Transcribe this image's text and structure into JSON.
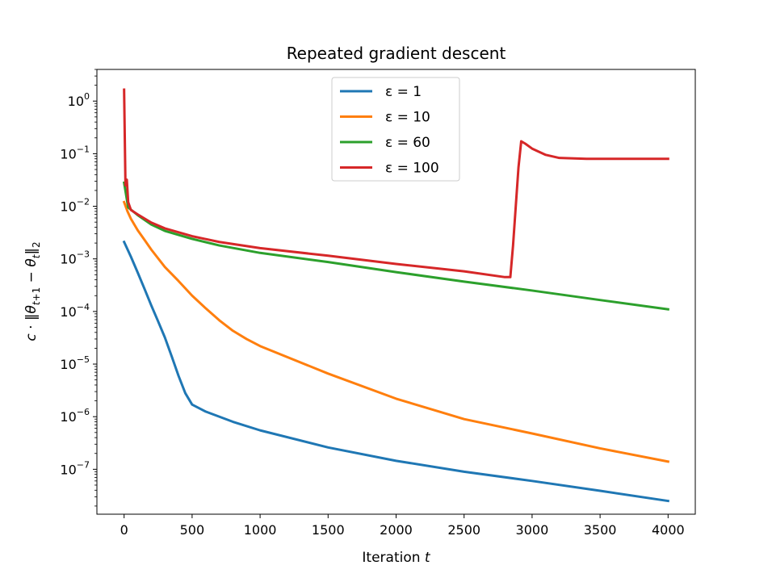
{
  "chart_data": {
    "type": "line",
    "title": "Repeated gradient descent",
    "xlabel": "Iteration t",
    "ylabel": "c · ‖θ_{t+1} − θ_t‖₂",
    "y_scale": "log",
    "xlim": [
      -200,
      4200
    ],
    "ylim": [
      1.4e-08,
      4
    ],
    "x_ticks": [
      0,
      500,
      1000,
      1500,
      2000,
      2500,
      3000,
      3500,
      4000
    ],
    "y_ticks": [
      {
        "value": 1,
        "base": "10",
        "exp": "0"
      },
      {
        "value": 0.1,
        "base": "10",
        "exp": "−1"
      },
      {
        "value": 0.01,
        "base": "10",
        "exp": "−2"
      },
      {
        "value": 0.001,
        "base": "10",
        "exp": "−3"
      },
      {
        "value": 0.0001,
        "base": "10",
        "exp": "−4"
      },
      {
        "value": 1e-05,
        "base": "10",
        "exp": "−5"
      },
      {
        "value": 1e-06,
        "base": "10",
        "exp": "−6"
      },
      {
        "value": 1e-07,
        "base": "10",
        "exp": "−7"
      }
    ],
    "grid": false,
    "legend_position": "top-center",
    "series": [
      {
        "name": "ε = 1",
        "color": "#1f77b4",
        "points": [
          [
            0,
            0.0021
          ],
          [
            50,
            0.0011
          ],
          [
            100,
            0.00055
          ],
          [
            150,
            0.00027
          ],
          [
            200,
            0.00013
          ],
          [
            250,
            6.5e-05
          ],
          [
            300,
            3.2e-05
          ],
          [
            350,
            1.4e-05
          ],
          [
            400,
            6e-06
          ],
          [
            450,
            2.8e-06
          ],
          [
            500,
            1.7e-06
          ],
          [
            600,
            1.25e-06
          ],
          [
            800,
            8e-07
          ],
          [
            1000,
            5.5e-07
          ],
          [
            1500,
            2.6e-07
          ],
          [
            2000,
            1.45e-07
          ],
          [
            2500,
            9e-08
          ],
          [
            3000,
            6e-08
          ],
          [
            3500,
            3.9e-08
          ],
          [
            4000,
            2.5e-08
          ]
        ]
      },
      {
        "name": "ε = 10",
        "color": "#ff7f0e",
        "points": [
          [
            0,
            0.012
          ],
          [
            25,
            0.008
          ],
          [
            50,
            0.0058
          ],
          [
            100,
            0.0035
          ],
          [
            150,
            0.0023
          ],
          [
            200,
            0.0015
          ],
          [
            300,
            0.0007
          ],
          [
            400,
            0.00038
          ],
          [
            500,
            0.0002
          ],
          [
            600,
            0.000115
          ],
          [
            700,
            6.8e-05
          ],
          [
            800,
            4.3e-05
          ],
          [
            900,
            3e-05
          ],
          [
            1000,
            2.2e-05
          ],
          [
            1500,
            6.6e-06
          ],
          [
            2000,
            2.2e-06
          ],
          [
            2500,
            9e-07
          ],
          [
            3000,
            4.8e-07
          ],
          [
            3500,
            2.5e-07
          ],
          [
            4000,
            1.4e-07
          ]
        ]
      },
      {
        "name": "ε = 60",
        "color": "#2ca02c",
        "points": [
          [
            0,
            0.028
          ],
          [
            30,
            0.0095
          ],
          [
            100,
            0.0068
          ],
          [
            200,
            0.0045
          ],
          [
            300,
            0.0034
          ],
          [
            500,
            0.0024
          ],
          [
            700,
            0.0018
          ],
          [
            1000,
            0.0013
          ],
          [
            1500,
            0.00087
          ],
          [
            2000,
            0.00056
          ],
          [
            2500,
            0.00037
          ],
          [
            3000,
            0.00025
          ],
          [
            3500,
            0.000165
          ],
          [
            4000,
            0.00011
          ]
        ]
      },
      {
        "name": "ε = 100",
        "color": "#d62728",
        "points": [
          [
            0,
            1.65
          ],
          [
            10,
            0.025
          ],
          [
            20,
            0.032
          ],
          [
            30,
            0.012
          ],
          [
            50,
            0.0085
          ],
          [
            100,
            0.007
          ],
          [
            200,
            0.0049
          ],
          [
            300,
            0.0038
          ],
          [
            500,
            0.0027
          ],
          [
            700,
            0.0021
          ],
          [
            1000,
            0.0016
          ],
          [
            1500,
            0.00115
          ],
          [
            2000,
            0.0008
          ],
          [
            2500,
            0.00058
          ],
          [
            2800,
            0.00045
          ],
          [
            2840,
            0.00045
          ],
          [
            2860,
            0.0018
          ],
          [
            2880,
            0.01
          ],
          [
            2900,
            0.055
          ],
          [
            2920,
            0.172
          ],
          [
            2950,
            0.155
          ],
          [
            3000,
            0.125
          ],
          [
            3100,
            0.095
          ],
          [
            3200,
            0.083
          ],
          [
            3400,
            0.08
          ],
          [
            4000,
            0.08
          ]
        ]
      }
    ]
  }
}
